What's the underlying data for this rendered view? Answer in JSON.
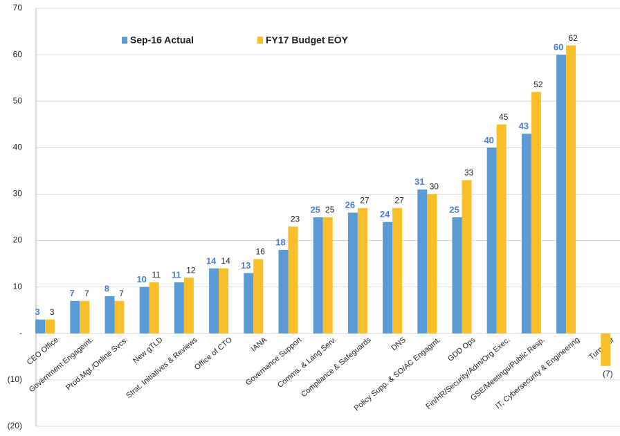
{
  "chart_data": {
    "type": "bar",
    "categories": [
      "CEO Office",
      "Government Engagemt.",
      "Prod.Mgt./Online Svcs.",
      "New gTLD",
      "Strat. Initiatives & Reviews",
      "Office of CTO",
      "IANA",
      "Governance Support",
      "Comms. & Lang.Serv.",
      "Compliance & Safeguards",
      "DNS",
      "Policy Supp. & SO/AC Engagmt.",
      "GDD Ops",
      "Fin/HR/Security/Adm/Org Exec.",
      "GSE/Meetings/Public Resp.",
      "IT, Cybersecurity & Engineering",
      "Turnover"
    ],
    "series": [
      {
        "name": "Sep-16 Actual",
        "color": "#5b9bd5",
        "values": [
          3,
          7,
          8,
          10,
          11,
          14,
          13,
          18,
          25,
          26,
          24,
          31,
          25,
          40,
          43,
          60,
          null
        ]
      },
      {
        "name": "FY17 Budget EOY",
        "color": "#f8bf2a",
        "values": [
          3,
          7,
          7,
          11,
          12,
          14,
          16,
          23,
          25,
          27,
          27,
          30,
          33,
          45,
          52,
          62,
          -7
        ],
        "value_labels": [
          "3",
          "7",
          "7",
          "11",
          "12",
          "14",
          "16",
          "23",
          "25",
          "27",
          "27",
          "30",
          "33",
          "45",
          "52",
          "62",
          "(7)"
        ]
      }
    ],
    "ylim": [
      -20,
      70
    ],
    "yticks": [
      {
        "value": -20,
        "label": "(20)"
      },
      {
        "value": -10,
        "label": "(10)"
      },
      {
        "value": 0,
        "label": "-"
      },
      10,
      20,
      30,
      40,
      50,
      60,
      70
    ],
    "grid": true
  }
}
